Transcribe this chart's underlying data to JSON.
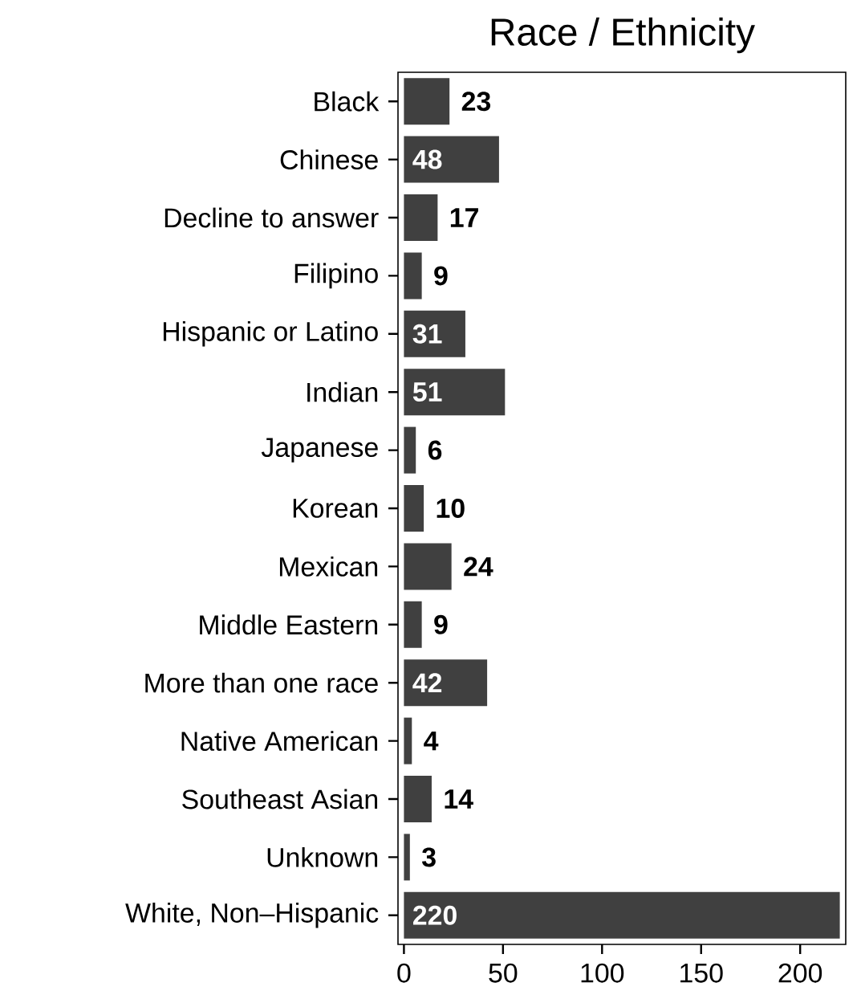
{
  "chart_data": {
    "type": "bar",
    "orientation": "horizontal",
    "title": "Race / Ethnicity",
    "categories": [
      "Black",
      "Chinese",
      "Decline to answer",
      "Filipino",
      "Hispanic or Latino",
      "Indian",
      "Japanese",
      "Korean",
      "Mexican",
      "Middle Eastern",
      "More than one race",
      "Native American",
      "Southeast Asian",
      "Unknown",
      "White, Non–Hispanic"
    ],
    "values": [
      23,
      48,
      17,
      9,
      31,
      51,
      6,
      10,
      24,
      9,
      42,
      4,
      14,
      3,
      220
    ],
    "color": "#404040",
    "data_labels": true,
    "grid": false,
    "xlim": [
      -3,
      223
    ],
    "xticks": [
      0,
      50,
      100,
      150,
      200
    ]
  }
}
